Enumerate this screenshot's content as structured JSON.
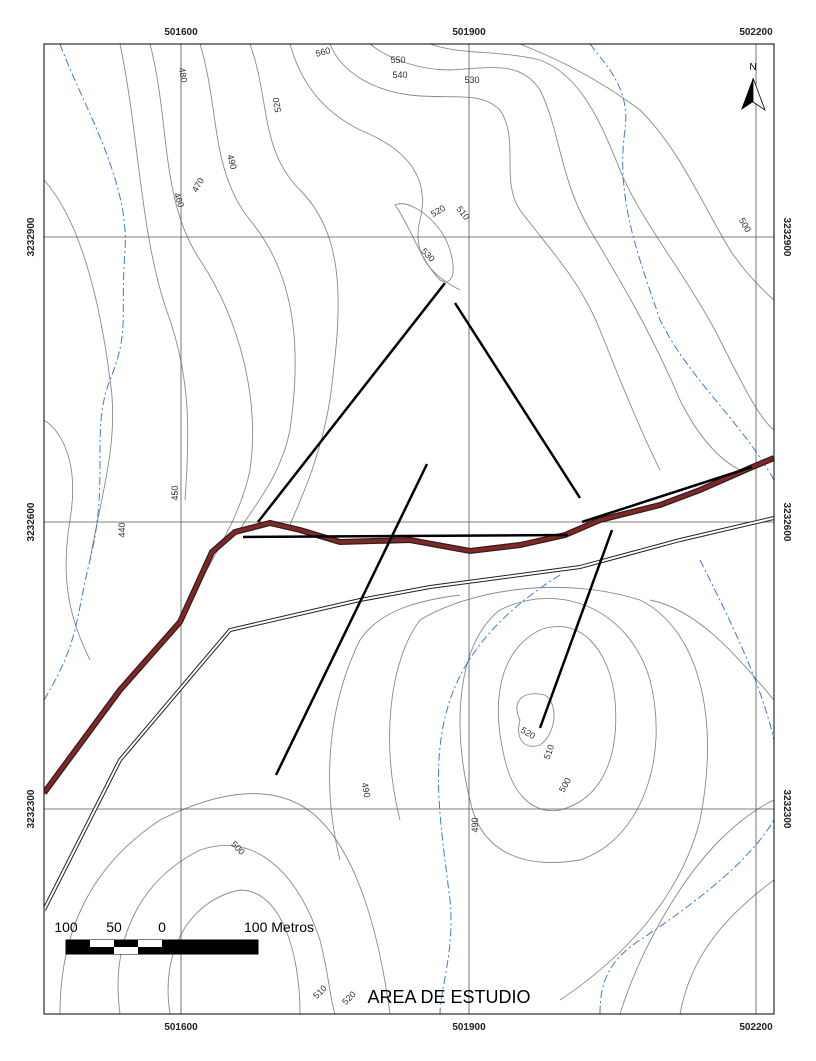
{
  "map": {
    "title": "AREA DE ESTUDIO",
    "north": "N",
    "easting_labels": [
      "501600",
      "501900",
      "502200"
    ],
    "northing_labels": [
      "3232900",
      "3232600",
      "3232300"
    ],
    "contour_labels": [
      "480",
      "560",
      "550",
      "540",
      "530",
      "520",
      "490",
      "470",
      "460",
      "520",
      "510",
      "530",
      "500",
      "450",
      "440",
      "520",
      "510",
      "500",
      "490",
      "490",
      "500",
      "510",
      "520"
    ],
    "scale_labels": [
      "100",
      "50",
      "0",
      "100 Metros"
    ]
  }
}
